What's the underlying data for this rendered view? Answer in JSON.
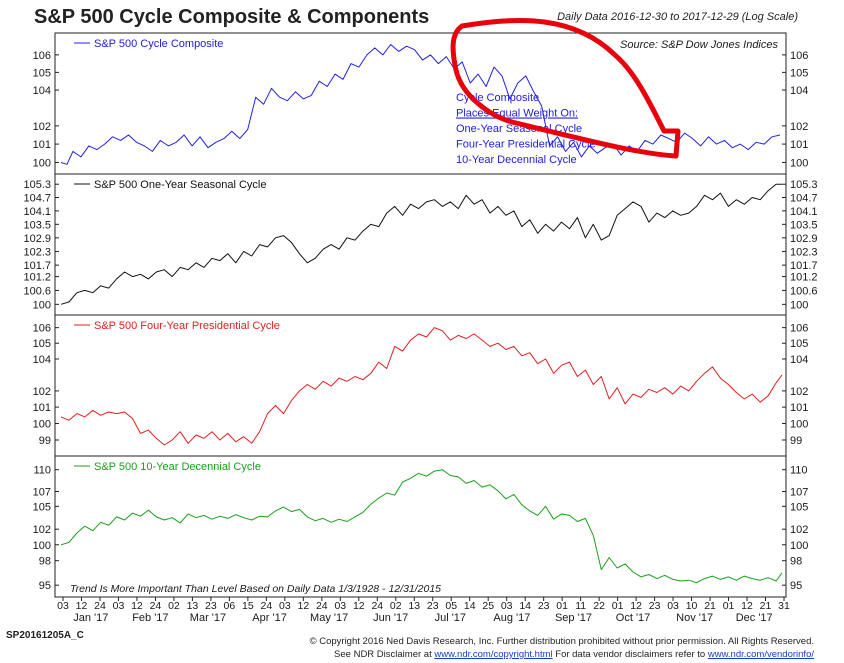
{
  "header": {
    "title": "S&P 500 Cycle Composite & Components",
    "date_range": "Daily Data 2016-12-30 to 2017-12-29 (Log Scale)"
  },
  "footer": {
    "code": "SP20161205A_C",
    "copyright": "© Copyright 2016 Ned Davis Research, Inc. Further distribution prohibited without prior permission. All Rights Reserved.",
    "disclaimer_prefix": "See NDR Disclaimer at ",
    "link1": "www.ndr.com/copyright.html",
    "disclaimer_mid": "  For data vendor disclaimers refer to ",
    "link2": "www.ndr.com/vendorinfo/"
  },
  "colors": {
    "composite": "#2020e0",
    "seasonal": "#111111",
    "presidential": "#e02020",
    "decennial": "#1aa01a",
    "annotation_circle": "#e8000a"
  },
  "chart_data": [
    {
      "type": "line",
      "name": "S&P 500 Cycle Composite",
      "color": "#2020e0",
      "ylim": [
        99.7,
        106.8
      ],
      "scale": "log",
      "yticks": [
        100,
        101,
        102,
        104,
        105,
        106
      ],
      "source": "Source:  S&P Dow Jones Indices",
      "annotation_lines": [
        "Cycle Composite",
        "Places Equal Weight On:",
        "One-Year Seasonal Cycle",
        "Four-Year Presidential Cycle",
        "10-Year Decennial Cycle"
      ],
      "x": [
        0,
        3,
        6,
        10,
        14,
        18,
        22,
        26,
        30,
        34,
        38,
        42,
        46,
        50,
        54,
        58,
        62,
        66,
        70,
        74,
        78,
        82,
        86,
        90,
        94,
        98,
        102,
        106,
        110,
        114,
        118,
        122,
        126,
        130,
        134,
        138,
        142,
        146,
        150,
        154,
        158,
        162,
        166,
        170,
        174,
        178,
        182,
        186,
        190,
        194,
        198,
        202,
        206,
        210,
        214,
        218,
        222,
        226,
        230,
        234,
        238,
        242,
        246,
        250,
        254,
        258,
        262,
        266,
        270,
        274,
        278,
        282,
        286,
        290,
        294,
        298,
        302,
        306,
        310,
        314,
        318,
        322,
        326,
        330,
        334,
        338,
        342,
        346,
        350,
        354,
        358,
        362
      ],
      "values": [
        100.0,
        99.9,
        100.6,
        100.3,
        100.9,
        100.7,
        101.0,
        101.4,
        101.2,
        101.5,
        101.1,
        100.9,
        100.6,
        101.2,
        100.9,
        101.1,
        101.5,
        100.9,
        101.4,
        100.8,
        101.1,
        101.3,
        101.7,
        101.3,
        101.8,
        103.6,
        103.2,
        104.1,
        103.6,
        103.4,
        103.9,
        103.5,
        103.7,
        104.5,
        104.2,
        104.9,
        104.6,
        105.5,
        105.3,
        106.0,
        106.4,
        106.0,
        106.6,
        106.2,
        106.5,
        106.3,
        105.7,
        106.0,
        105.5,
        105.9,
        105.2,
        105.6,
        104.4,
        104.9,
        104.2,
        105.3,
        104.8,
        103.5,
        104.4,
        104.8,
        103.9,
        103.1,
        100.9,
        101.4,
        100.6,
        101.1,
        100.3,
        100.9,
        100.5,
        100.8,
        101.0,
        100.4,
        100.9,
        100.6,
        101.2,
        101.0,
        101.5,
        101.3,
        101.1,
        101.6,
        101.3,
        100.9,
        101.4,
        101.0,
        101.2,
        100.8,
        101.0,
        100.7,
        101.1,
        101.0,
        101.4,
        101.5
      ]
    },
    {
      "type": "line",
      "name": "S&P 500 One-Year Seasonal Cycle",
      "color": "#111111",
      "ylim": [
        99.8,
        105.4
      ],
      "scale": "log",
      "yticks": [
        100.0,
        100.6,
        101.2,
        101.7,
        102.3,
        102.9,
        103.5,
        104.1,
        104.7,
        105.3
      ],
      "x": [
        0,
        4,
        8,
        12,
        16,
        20,
        24,
        28,
        32,
        36,
        40,
        44,
        48,
        52,
        56,
        60,
        64,
        68,
        72,
        76,
        80,
        84,
        88,
        92,
        96,
        100,
        104,
        108,
        112,
        116,
        120,
        124,
        128,
        132,
        136,
        140,
        144,
        148,
        152,
        156,
        160,
        164,
        168,
        172,
        176,
        180,
        184,
        188,
        192,
        196,
        200,
        204,
        208,
        212,
        216,
        220,
        224,
        228,
        232,
        236,
        240,
        244,
        248,
        252,
        256,
        260,
        264,
        268,
        272,
        276,
        280,
        284,
        288,
        292,
        296,
        300,
        304,
        308,
        312,
        316,
        320,
        324,
        328,
        332,
        336,
        340,
        344,
        348,
        352,
        356,
        360,
        363
      ],
      "values": [
        100.0,
        100.1,
        100.5,
        100.6,
        100.5,
        100.8,
        100.7,
        101.1,
        101.4,
        101.2,
        101.3,
        101.1,
        101.4,
        101.5,
        101.2,
        101.6,
        101.5,
        101.8,
        101.6,
        102.0,
        101.9,
        102.2,
        101.8,
        102.3,
        102.1,
        102.6,
        102.5,
        102.9,
        103.0,
        102.7,
        102.2,
        101.8,
        102.0,
        102.4,
        102.6,
        102.4,
        102.9,
        102.8,
        103.2,
        103.5,
        103.4,
        104.0,
        104.3,
        103.9,
        104.4,
        104.2,
        104.5,
        104.6,
        104.3,
        104.5,
        104.2,
        104.8,
        104.4,
        104.6,
        104.0,
        104.3,
        103.9,
        104.1,
        103.4,
        103.7,
        103.1,
        103.5,
        103.2,
        103.6,
        103.3,
        103.8,
        102.9,
        103.5,
        102.8,
        103.0,
        103.9,
        104.2,
        104.5,
        104.3,
        103.6,
        104.0,
        103.8,
        104.1,
        103.9,
        104.0,
        104.3,
        104.8,
        104.6,
        104.9,
        104.3,
        104.6,
        104.4,
        104.7,
        104.6,
        105.0,
        105.3,
        105.3
      ]
    },
    {
      "type": "line",
      "name": "S&P 500 Four-Year Presidential Cycle",
      "color": "#e02020",
      "ylim": [
        98.4,
        106.3
      ],
      "scale": "log",
      "yticks": [
        99,
        100,
        101,
        102,
        104,
        105,
        106
      ],
      "x": [
        0,
        4,
        8,
        12,
        16,
        20,
        24,
        28,
        32,
        36,
        40,
        44,
        48,
        52,
        56,
        60,
        64,
        68,
        72,
        76,
        80,
        84,
        88,
        92,
        96,
        100,
        104,
        108,
        112,
        116,
        120,
        124,
        128,
        132,
        136,
        140,
        144,
        148,
        152,
        156,
        160,
        164,
        168,
        172,
        176,
        180,
        184,
        188,
        192,
        196,
        200,
        204,
        208,
        212,
        216,
        220,
        224,
        228,
        232,
        236,
        240,
        244,
        248,
        252,
        256,
        260,
        264,
        268,
        272,
        276,
        280,
        284,
        288,
        292,
        296,
        300,
        304,
        308,
        312,
        316,
        320,
        324,
        328,
        332,
        336,
        340,
        344,
        348,
        352,
        356,
        360,
        363
      ],
      "values": [
        100.4,
        100.2,
        100.6,
        100.4,
        100.8,
        100.5,
        100.7,
        100.6,
        100.7,
        100.3,
        99.4,
        99.6,
        99.1,
        98.7,
        99.0,
        99.5,
        98.8,
        99.3,
        99.1,
        99.5,
        99.0,
        99.4,
        98.9,
        99.2,
        98.8,
        99.5,
        100.6,
        101.1,
        100.6,
        101.4,
        102.0,
        102.4,
        102.1,
        102.6,
        102.3,
        102.8,
        102.6,
        102.9,
        102.7,
        103.1,
        103.8,
        103.4,
        104.8,
        104.5,
        105.2,
        105.6,
        105.4,
        106.0,
        105.8,
        105.2,
        105.5,
        105.3,
        105.6,
        105.2,
        104.8,
        105.0,
        104.6,
        104.8,
        104.2,
        104.4,
        103.7,
        104.0,
        103.1,
        103.6,
        103.8,
        102.9,
        103.3,
        102.4,
        102.9,
        101.5,
        102.2,
        101.2,
        101.8,
        101.6,
        102.1,
        101.9,
        102.2,
        101.8,
        102.3,
        102.0,
        102.6,
        103.1,
        103.5,
        102.8,
        102.4,
        101.9,
        101.5,
        101.8,
        101.3,
        101.7,
        102.5,
        103.0
      ]
    },
    {
      "type": "line",
      "name": "S&P 500 10-Year Decennial Cycle",
      "color": "#1aa01a",
      "ylim": [
        94.3,
        110.8
      ],
      "scale": "log",
      "yticks": [
        95,
        98,
        100,
        102,
        105,
        107,
        110
      ],
      "annotation": "Trend Is More Important Than Level Based on Daily Data 1/3/1928 - 12/31/2015",
      "x": [
        0,
        4,
        8,
        12,
        16,
        20,
        24,
        28,
        32,
        36,
        40,
        44,
        48,
        52,
        56,
        60,
        64,
        68,
        72,
        76,
        80,
        84,
        88,
        92,
        96,
        100,
        104,
        108,
        112,
        116,
        120,
        124,
        128,
        132,
        136,
        140,
        144,
        148,
        152,
        156,
        160,
        164,
        168,
        172,
        176,
        180,
        184,
        188,
        192,
        196,
        200,
        204,
        208,
        212,
        216,
        220,
        224,
        228,
        232,
        236,
        240,
        244,
        248,
        252,
        256,
        260,
        264,
        268,
        272,
        276,
        280,
        284,
        288,
        292,
        296,
        300,
        304,
        308,
        312,
        316,
        320,
        324,
        328,
        332,
        336,
        340,
        344,
        348,
        352,
        356,
        360,
        363
      ],
      "values": [
        100.0,
        100.3,
        101.5,
        102.4,
        101.8,
        102.9,
        102.5,
        103.6,
        103.2,
        104.1,
        103.7,
        104.5,
        103.6,
        103.2,
        103.5,
        102.8,
        104.0,
        103.5,
        103.8,
        103.3,
        103.7,
        103.4,
        103.9,
        103.5,
        103.2,
        103.7,
        103.6,
        104.4,
        104.9,
        104.3,
        104.6,
        103.6,
        103.1,
        103.4,
        102.9,
        103.3,
        103.0,
        103.6,
        104.2,
        105.3,
        106.1,
        106.8,
        106.5,
        108.3,
        108.8,
        109.5,
        109.1,
        109.8,
        110.0,
        109.2,
        109.0,
        108.1,
        108.5,
        107.6,
        107.9,
        107.1,
        106.0,
        106.6,
        105.2,
        104.4,
        103.8,
        105.0,
        103.3,
        104.0,
        103.8,
        103.0,
        103.4,
        101.2,
        96.9,
        98.4,
        97.1,
        97.6,
        96.6,
        96.0,
        96.3,
        95.8,
        96.2,
        95.7,
        95.5,
        95.6,
        95.3,
        95.8,
        96.1,
        95.7,
        96.0,
        95.6,
        96.1,
        95.8,
        95.6,
        95.9,
        95.5,
        96.5
      ]
    }
  ],
  "x_axis": {
    "day_labels": [
      "03",
      "12",
      "24",
      "03",
      "12",
      "24",
      "02",
      "13",
      "23",
      "06",
      "15",
      "24",
      "03",
      "12",
      "24",
      "03",
      "12",
      "24",
      "02",
      "13",
      "23",
      "05",
      "14",
      "25",
      "03",
      "14",
      "23",
      "01",
      "11",
      "22",
      "01",
      "12",
      "23",
      "03",
      "10",
      "21",
      "01",
      "12",
      "21",
      "31"
    ],
    "month_labels": [
      "Jan '17",
      "Feb '17",
      "Mar '17",
      "Apr '17",
      "May '17",
      "Jun '17",
      "Jul '17",
      "Aug '17",
      "Sep '17",
      "Oct '17",
      "Nov '17",
      "Dec '17"
    ],
    "month_days": [
      15,
      45,
      74,
      105,
      135,
      166,
      196,
      227,
      258,
      288,
      319,
      349
    ]
  }
}
